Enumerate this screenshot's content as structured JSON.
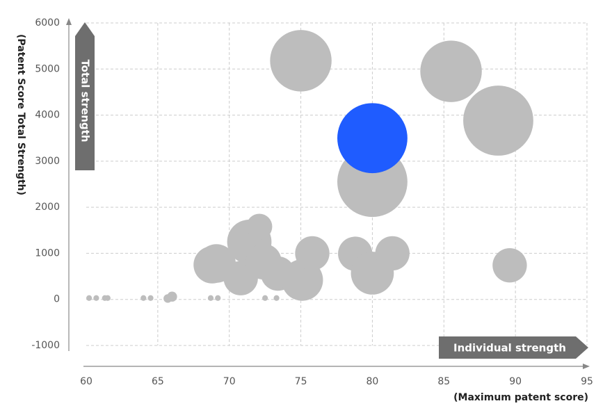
{
  "chart_data": {
    "type": "scatter",
    "subtype": "bubble",
    "title": "",
    "xlabel": "(Maximum patent score)",
    "ylabel": "(Patent Score Total Strength)",
    "xlim": [
      60,
      95
    ],
    "ylim": [
      -1000,
      6000
    ],
    "xticks": [
      "60",
      "65",
      "70",
      "75",
      "80",
      "85",
      "90",
      "95"
    ],
    "yticks": [
      "-1000",
      "0",
      "1000",
      "2000",
      "3000",
      "4000",
      "5000",
      "6000"
    ],
    "grid": true,
    "annotations": {
      "y_arrow": "Total strength",
      "x_arrow": "Individual strength"
    },
    "colors": {
      "default": "#bdbdbd",
      "highlight": "#1f5cff",
      "grid": "#cccccc",
      "axis": "#888888",
      "arrow": "#6e6e6e"
    },
    "points": [
      {
        "x": 60.2,
        "y": 30,
        "r": 0.2
      },
      {
        "x": 60.7,
        "y": 30,
        "r": 0.2
      },
      {
        "x": 61.3,
        "y": 30,
        "r": 0.2
      },
      {
        "x": 61.5,
        "y": 30,
        "r": 0.2
      },
      {
        "x": 64,
        "y": 30,
        "r": 0.2
      },
      {
        "x": 64.5,
        "y": 30,
        "r": 0.2
      },
      {
        "x": 65.7,
        "y": 20,
        "r": 0.3
      },
      {
        "x": 66,
        "y": 60,
        "r": 0.35
      },
      {
        "x": 68.7,
        "y": 30,
        "r": 0.2
      },
      {
        "x": 69.2,
        "y": 30,
        "r": 0.2
      },
      {
        "x": 72.5,
        "y": 30,
        "r": 0.2
      },
      {
        "x": 73.3,
        "y": 30,
        "r": 0.2
      },
      {
        "x": 68.8,
        "y": 750,
        "r": 1.3
      },
      {
        "x": 69.1,
        "y": 780,
        "r": 1.35
      },
      {
        "x": 70.8,
        "y": 460,
        "r": 1.2
      },
      {
        "x": 71.4,
        "y": 1250,
        "r": 1.55
      },
      {
        "x": 72.1,
        "y": 1580,
        "r": 0.9
      },
      {
        "x": 72.4,
        "y": 820,
        "r": 1.25
      },
      {
        "x": 73.4,
        "y": 560,
        "r": 1.2
      },
      {
        "x": 75.1,
        "y": 420,
        "r": 1.45
      },
      {
        "x": 75,
        "y": 5180,
        "r": 2.15
      },
      {
        "x": 75.8,
        "y": 1000,
        "r": 1.2
      },
      {
        "x": 78.8,
        "y": 990,
        "r": 1.2
      },
      {
        "x": 79,
        "y": 2400,
        "r": 1.3
      },
      {
        "x": 80,
        "y": 2550,
        "r": 2.45
      },
      {
        "x": 80,
        "y": 570,
        "r": 1.5
      },
      {
        "x": 81.4,
        "y": 1000,
        "r": 1.2
      },
      {
        "x": 85.5,
        "y": 4950,
        "r": 2.15
      },
      {
        "x": 88.8,
        "y": 3880,
        "r": 2.45
      },
      {
        "x": 89.6,
        "y": 740,
        "r": 1.2
      },
      {
        "x": 80,
        "y": 3500,
        "r": 2.45,
        "highlight": true
      }
    ]
  }
}
